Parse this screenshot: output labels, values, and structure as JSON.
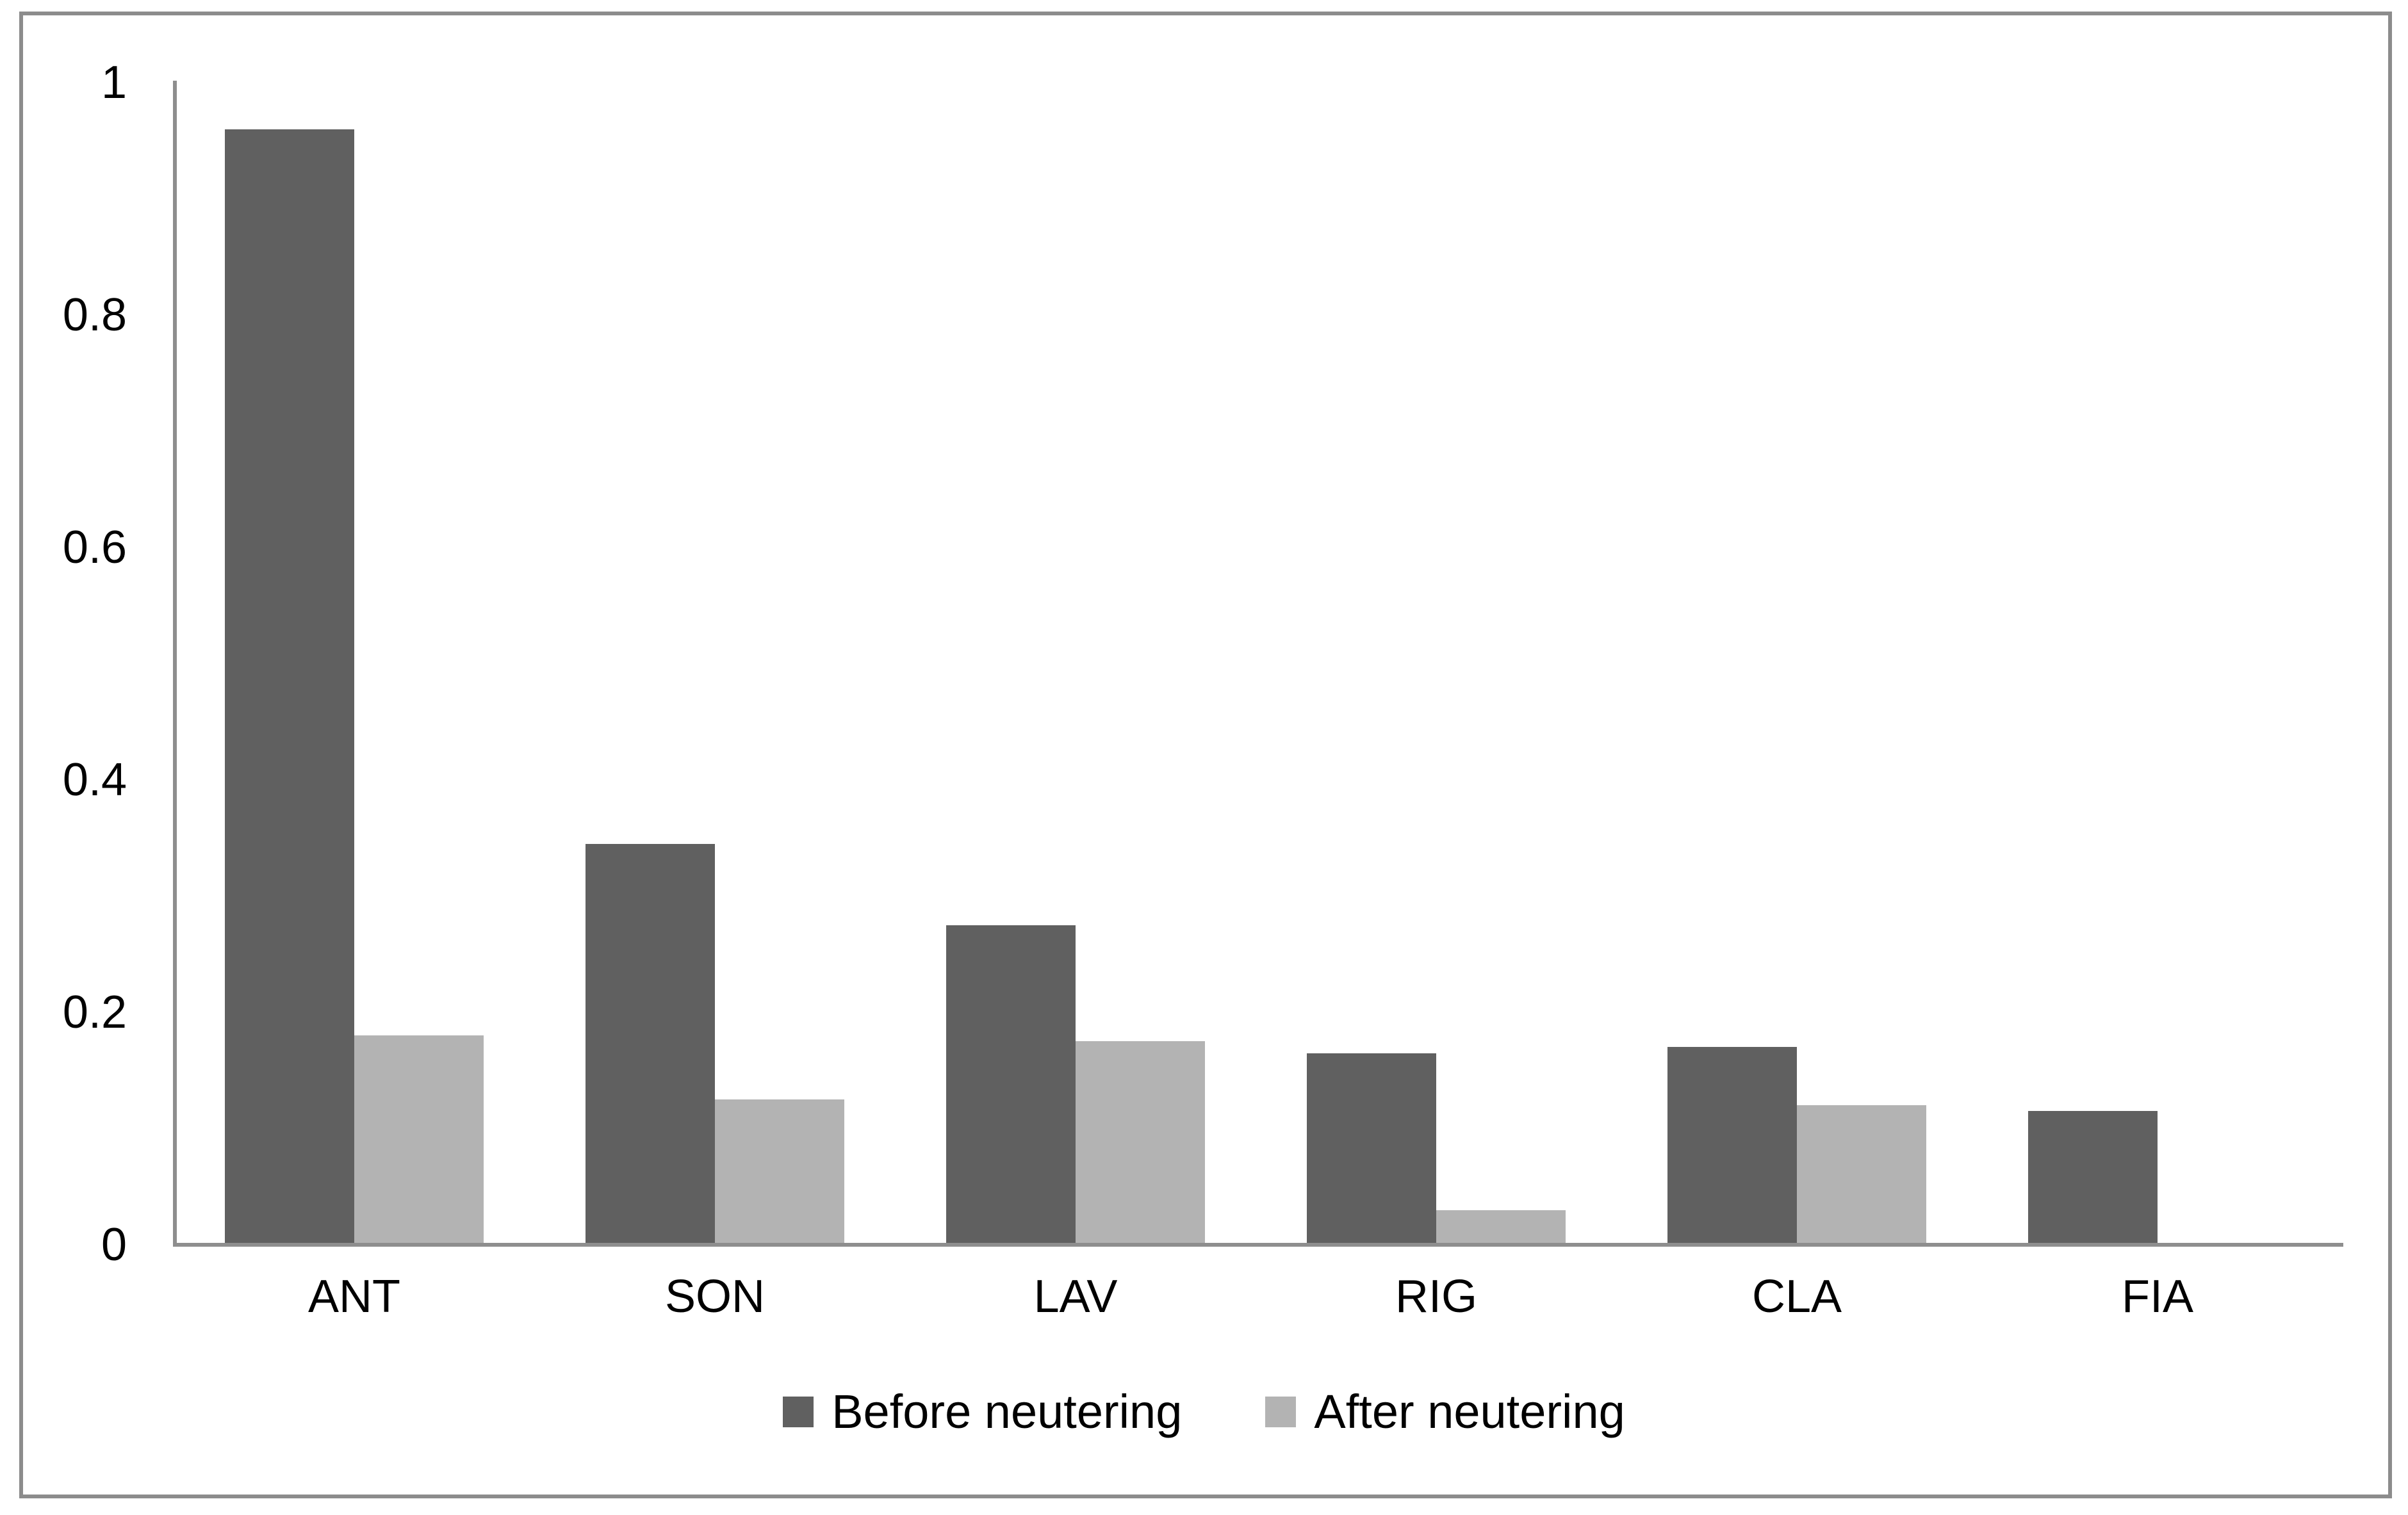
{
  "chart_data": {
    "type": "bar",
    "title": "",
    "xlabel": "",
    "ylabel": "",
    "categories": [
      "ANT",
      "SON",
      "LAV",
      "RIG",
      "CLA",
      "FIA"
    ],
    "series": [
      {
        "name": "Before neutering",
        "color": "#606060",
        "values": [
          0.96,
          0.345,
          0.275,
          0.165,
          0.17,
          0.115
        ]
      },
      {
        "name": "After neutering",
        "color": "#B3B3B3",
        "values": [
          0.18,
          0.125,
          0.175,
          0.03,
          0.12,
          0
        ]
      }
    ],
    "ylim": [
      0,
      1
    ],
    "yticks": [
      "0",
      "0.2",
      "0.4",
      "0.6",
      "0.8",
      "1"
    ],
    "grid": false,
    "legend_position": "bottom-center"
  },
  "colors": {
    "background": "#FFFFFF",
    "axis": "#8E8E8E",
    "frame_border": "#8C8C8C",
    "text": "#000000"
  }
}
